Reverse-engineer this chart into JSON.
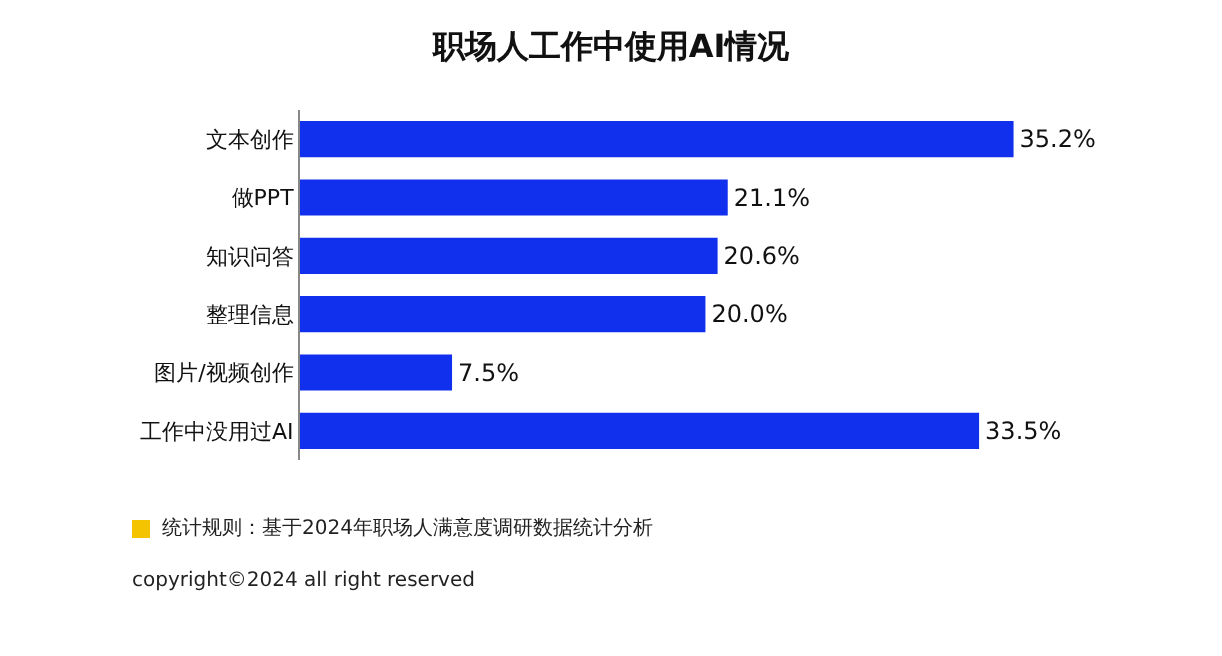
{
  "chart_data": {
    "type": "bar",
    "orientation": "horizontal",
    "title": "职场人工作中使用AI情况",
    "categories": [
      "文本创作",
      "做PPT",
      "知识问答",
      "整理信息",
      "图片/视频创作",
      "工作中没用过AI"
    ],
    "values": [
      35.2,
      21.1,
      20.6,
      20.0,
      7.5,
      33.5
    ],
    "value_labels": [
      "35.2%",
      "21.1%",
      "20.6%",
      "20.0%",
      "7.5%",
      "33.5%"
    ],
    "color": "#1030ee",
    "annotations": [
      "统计规则：基于2024年职场人满意度调研数据统计分析",
      "copyright©2024 all right reserved"
    ]
  }
}
